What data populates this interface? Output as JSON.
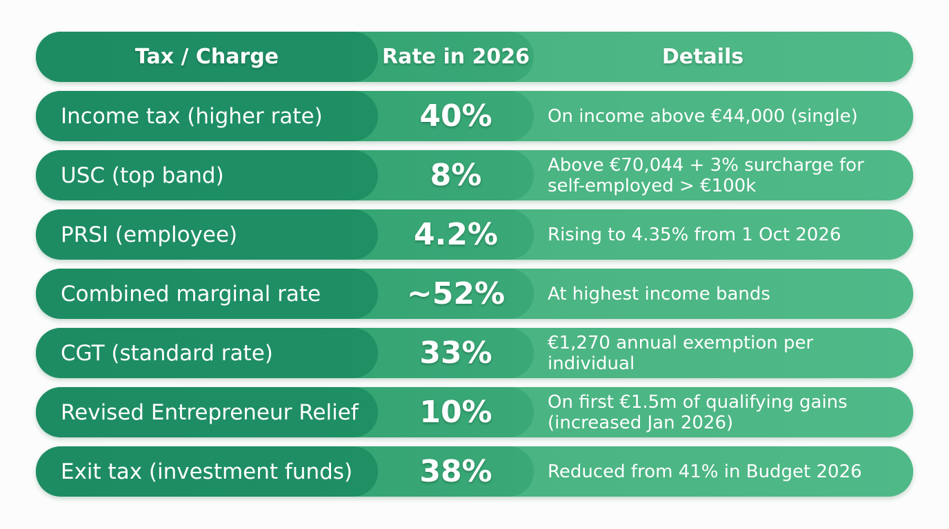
{
  "headers": {
    "tax": "Tax / Charge",
    "rate": "Rate in 2026",
    "details": "Details"
  },
  "rows": [
    {
      "tax": "Income tax (higher rate)",
      "rate": "40%",
      "details": "On income above €44,000 (single)"
    },
    {
      "tax": "USC (top band)",
      "rate": "8%",
      "details": "Above €70,044 + 3% surcharge for self-employed > €100k"
    },
    {
      "tax": "PRSI (employee)",
      "rate": "4.2%",
      "details": "Rising to 4.35% from 1 Oct 2026"
    },
    {
      "tax": "Combined marginal rate",
      "rate": "~52%",
      "details": "At highest income bands"
    },
    {
      "tax": "CGT (standard rate)",
      "rate": "33%",
      "details": "€1,270 annual exemption per individual"
    },
    {
      "tax": "Revised Entrepreneur Relief",
      "rate": "10%",
      "details": "On first €1.5m of qualifying gains (increased Jan 2026)"
    },
    {
      "tax": "Exit tax (investment funds)",
      "rate": "38%",
      "details": "Reduced from 41% in Budget 2026"
    }
  ],
  "colors": {
    "column_1": "#1f8f64",
    "column_2": "#38a776",
    "column_3": "#4db685",
    "text": "#ffffff"
  }
}
